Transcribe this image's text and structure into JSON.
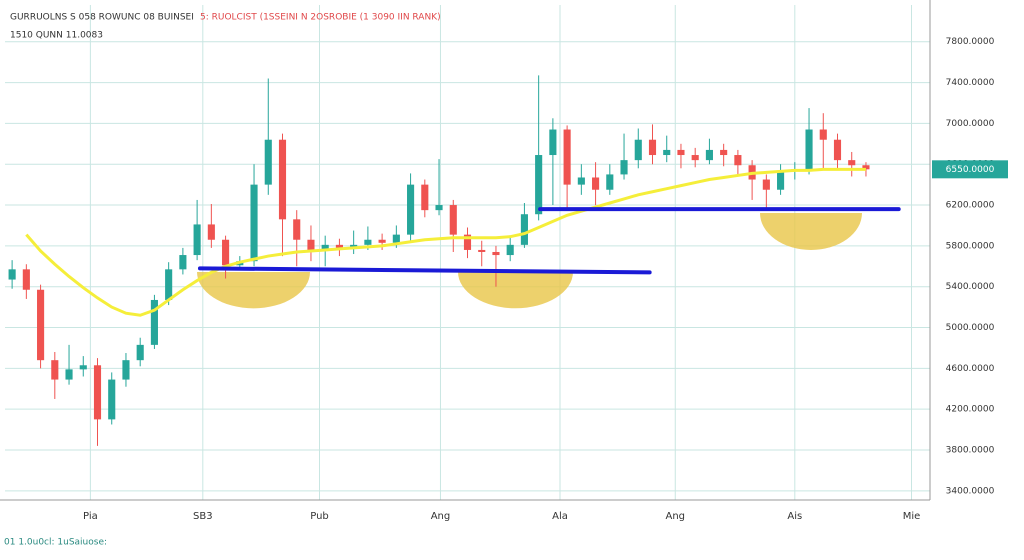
{
  "chart_data": {
    "type": "candlestick",
    "title": "GURRUOLNS S 058 ROWUNC 08 BUINSEI",
    "subtitle": "5: RUOLCIST (1SSEINI N 2OSROBIE (1 3090 IIN RANK)",
    "info": "1510 QUNN 11.0083",
    "footer": "01 1.0u0cl: 1uSaiuose:",
    "x": [
      0,
      1,
      2,
      3,
      4,
      5,
      6,
      7,
      8,
      9,
      10,
      11,
      12,
      13,
      14,
      15,
      16,
      17,
      18,
      19,
      20,
      21,
      22,
      23,
      24,
      25,
      26,
      27,
      28,
      29,
      30,
      31,
      32,
      33,
      34,
      35,
      36,
      37,
      38,
      39,
      40,
      41,
      42,
      43,
      44,
      45,
      46,
      47,
      48,
      49,
      50,
      51,
      52,
      53,
      54,
      55,
      56,
      57,
      58,
      59,
      60
    ],
    "open": [
      5470,
      5570,
      5370,
      4680,
      4490,
      4590,
      4630,
      4100,
      4490,
      4680,
      4830,
      5270,
      5570,
      5710,
      6010,
      5860,
      5610,
      5650,
      6400,
      6840,
      6060,
      5860,
      5760,
      5810,
      5780,
      5810,
      5860,
      5830,
      5910,
      6400,
      6150,
      6200,
      5910,
      5760,
      5740,
      5710,
      5810,
      6110,
      6690,
      6940,
      6400,
      6470,
      6350,
      6500,
      6640,
      6840,
      6690,
      6740,
      6690,
      6640,
      6740,
      6690,
      6590,
      6450,
      6350,
      6530,
      6550,
      6940,
      6840,
      6640,
      6590
    ],
    "high": [
      5660,
      5620,
      5420,
      4760,
      4830,
      4720,
      4700,
      4560,
      4750,
      4900,
      5320,
      5640,
      5780,
      6250,
      6210,
      5900,
      5700,
      6600,
      7440,
      6900,
      6150,
      6000,
      5900,
      5870,
      5950,
      5990,
      5920,
      6000,
      6510,
      6450,
      6650,
      6250,
      5980,
      5850,
      5800,
      5900,
      6220,
      7470,
      7050,
      6980,
      6600,
      6620,
      6600,
      6900,
      6950,
      6990,
      6880,
      6800,
      6760,
      6850,
      6800,
      6740,
      6640,
      6500,
      6600,
      6620,
      7150,
      7100,
      6900,
      6720,
      6620
    ],
    "low": [
      5380,
      5280,
      4600,
      4300,
      4440,
      4520,
      3840,
      4050,
      4420,
      4620,
      4790,
      5220,
      5520,
      5660,
      5780,
      5480,
      5560,
      5600,
      6300,
      5700,
      5600,
      5650,
      5600,
      5700,
      5720,
      5760,
      5760,
      5780,
      5850,
      6080,
      6100,
      5740,
      5680,
      5600,
      5400,
      5650,
      5780,
      6050,
      6200,
      6150,
      6300,
      6200,
      6300,
      6450,
      6560,
      6600,
      6620,
      6560,
      6570,
      6600,
      6580,
      6480,
      6250,
      6160,
      6300,
      6450,
      6500,
      6560,
      6560,
      6480,
      6480
    ],
    "close": [
      5570,
      5370,
      4680,
      4490,
      4590,
      4630,
      4100,
      4490,
      4680,
      4830,
      5270,
      5570,
      5710,
      6010,
      5860,
      5610,
      5650,
      6400,
      6840,
      6060,
      5860,
      5760,
      5810,
      5780,
      5810,
      5860,
      5830,
      5910,
      6400,
      6150,
      6200,
      5910,
      5760,
      5740,
      5710,
      5810,
      6110,
      6690,
      6940,
      6400,
      6470,
      6350,
      6500,
      6640,
      6840,
      6690,
      6740,
      6690,
      6640,
      6740,
      6690,
      6590,
      6450,
      6350,
      6530,
      6550,
      6940,
      6840,
      6640,
      6590,
      6550
    ],
    "up_color": "#26a69a",
    "down_color": "#ef5350",
    "moving_average": {
      "color": "#f5ee3a",
      "values": [
        null,
        5910,
        5750,
        5620,
        5500,
        5390,
        5290,
        5200,
        5140,
        5120,
        5170,
        5270,
        5370,
        5460,
        5540,
        5600,
        5640,
        5670,
        5700,
        5720,
        5740,
        5750,
        5760,
        5770,
        5780,
        5790,
        5800,
        5820,
        5840,
        5860,
        5870,
        5880,
        5880,
        5880,
        5880,
        5890,
        5920,
        5980,
        6040,
        6100,
        6140,
        6180,
        6220,
        6260,
        6300,
        6330,
        6360,
        6390,
        6420,
        6450,
        6470,
        6490,
        6510,
        6520,
        6530,
        6540,
        6540,
        6550,
        6550,
        6550,
        6550
      ]
    },
    "levels": [
      {
        "color": "#1a1ad6",
        "x": [
          13.2,
          44.8
        ],
        "values": [
          5580,
          5540
        ]
      },
      {
        "color": "#1a1ad6",
        "x": [
          37.1,
          62.3
        ],
        "values": [
          6160,
          6160
        ]
      }
    ],
    "last_price": {
      "value": 6550,
      "label": "6550.0000",
      "color": "#26a69a"
    },
    "xlim": [
      -0.5,
      64.5
    ],
    "xticks": [
      {
        "value": 5.5,
        "label": "Pia"
      },
      {
        "value": 13.4,
        "label": "SB3"
      },
      {
        "value": 21.6,
        "label": "Pub"
      },
      {
        "value": 30.1,
        "label": "Ang"
      },
      {
        "value": 38.5,
        "label": "Ala"
      },
      {
        "value": 46.6,
        "label": "Ang"
      },
      {
        "value": 55.0,
        "label": "Ais"
      },
      {
        "value": 63.2,
        "label": "Mie"
      }
    ],
    "ylim": [
      3310,
      8160
    ],
    "yticks": [
      {
        "value": 3400,
        "label": "3400.0000"
      },
      {
        "value": 3800,
        "label": "3800.0000"
      },
      {
        "value": 4200,
        "label": "4200.0000"
      },
      {
        "value": 4600,
        "label": "4600.0000"
      },
      {
        "value": 5000,
        "label": "5000.0000"
      },
      {
        "value": 5400,
        "label": "5400.0000"
      },
      {
        "value": 5800,
        "label": "5800.0000"
      },
      {
        "value": 6200,
        "label": "6200.0000"
      },
      {
        "value": 6600,
        "label": "6600.0000"
      },
      {
        "value": 7000,
        "label": "7000.0000"
      },
      {
        "value": 7400,
        "label": "7400.0000"
      },
      {
        "value": 7800,
        "label": "7800.0000"
      }
    ],
    "grid": true
  }
}
